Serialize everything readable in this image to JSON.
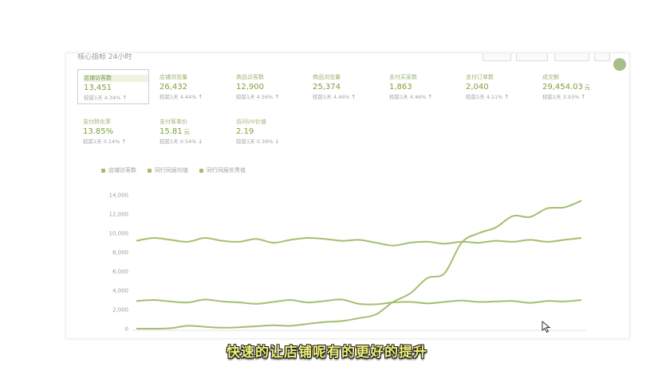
{
  "panel": {
    "header_title": "核心指标  24小时",
    "buttons": [
      "",
      "",
      "",
      ""
    ]
  },
  "metrics": [
    {
      "label": "店铺访客数",
      "value": "13,451",
      "unit": "",
      "compare": "较前1天 4.34%",
      "trend": "up",
      "selected": true
    },
    {
      "label": "店铺浏览量",
      "value": "26,432",
      "unit": "",
      "compare": "较前1天 4.44%",
      "trend": "up",
      "selected": false
    },
    {
      "label": "商品访客数",
      "value": "12,900",
      "unit": "",
      "compare": "较前1天 4.56%",
      "trend": "up",
      "selected": false
    },
    {
      "label": "商品浏览量",
      "value": "25,374",
      "unit": "",
      "compare": "较前1天 4.46%",
      "trend": "up",
      "selected": false
    },
    {
      "label": "支付买家数",
      "value": "1,863",
      "unit": "",
      "compare": "较前1天 4.46%",
      "trend": "up",
      "selected": false
    },
    {
      "label": "支付订单数",
      "value": "2,040",
      "unit": "",
      "compare": "较前1天 4.11%",
      "trend": "up",
      "selected": false
    },
    {
      "label": "成交额",
      "value": "29,454.03",
      "unit": "元",
      "compare": "较前1天 3.93%",
      "trend": "up",
      "selected": false
    },
    {
      "label": "支付转化率",
      "value": "13.85%",
      "unit": "",
      "compare": "较前1天 0.14%",
      "trend": "up",
      "selected": false
    },
    {
      "label": "支付客单价",
      "value": "15.81",
      "unit": "元",
      "compare": "较前1天 0.54%",
      "trend": "down",
      "selected": false
    },
    {
      "label": "访问UV价值",
      "value": "2.19",
      "unit": "",
      "compare": "较前1天 0.39%",
      "trend": "down",
      "selected": false
    }
  ],
  "legend": [
    "店铺访客数",
    "同行同层均值",
    "同行同层优秀值"
  ],
  "chart_data": {
    "type": "line",
    "title": "",
    "xlabel": "",
    "ylabel": "",
    "ylim": [
      0,
      14000
    ],
    "yticks": [
      "0",
      "2,000",
      "4,000",
      "6,000",
      "8,000",
      "10,000",
      "12,000",
      "14,000"
    ],
    "grid": false,
    "legend_position": "top-left",
    "series": [
      {
        "name": "店铺访客数",
        "values": [
          0,
          0,
          50,
          300,
          200,
          100,
          150,
          250,
          350,
          300,
          500,
          700,
          800,
          1100,
          1500,
          2800,
          3700,
          5300,
          5800,
          9000,
          10000,
          10600,
          11800,
          11700,
          12600,
          12700,
          13400
        ]
      },
      {
        "name": "同行同层均值",
        "values": [
          2900,
          3000,
          2850,
          2750,
          3050,
          2850,
          2750,
          2600,
          2800,
          3000,
          2750,
          2900,
          3050,
          2600,
          2550,
          2750,
          2800,
          2650,
          2800,
          2950,
          2800,
          2850,
          2900,
          2700,
          2900,
          2850,
          3000
        ]
      },
      {
        "name": "同行同层优秀值",
        "values": [
          9200,
          9500,
          9300,
          9100,
          9500,
          9200,
          9100,
          9400,
          9000,
          9300,
          9500,
          9400,
          9200,
          9300,
          9000,
          8700,
          9000,
          9100,
          8900,
          9100,
          9000,
          9200,
          9100,
          9300,
          9100,
          9300,
          9500
        ]
      }
    ],
    "color": "#a3bf6f"
  },
  "subtitle": "快速的让店铺呢有的更好的提升"
}
